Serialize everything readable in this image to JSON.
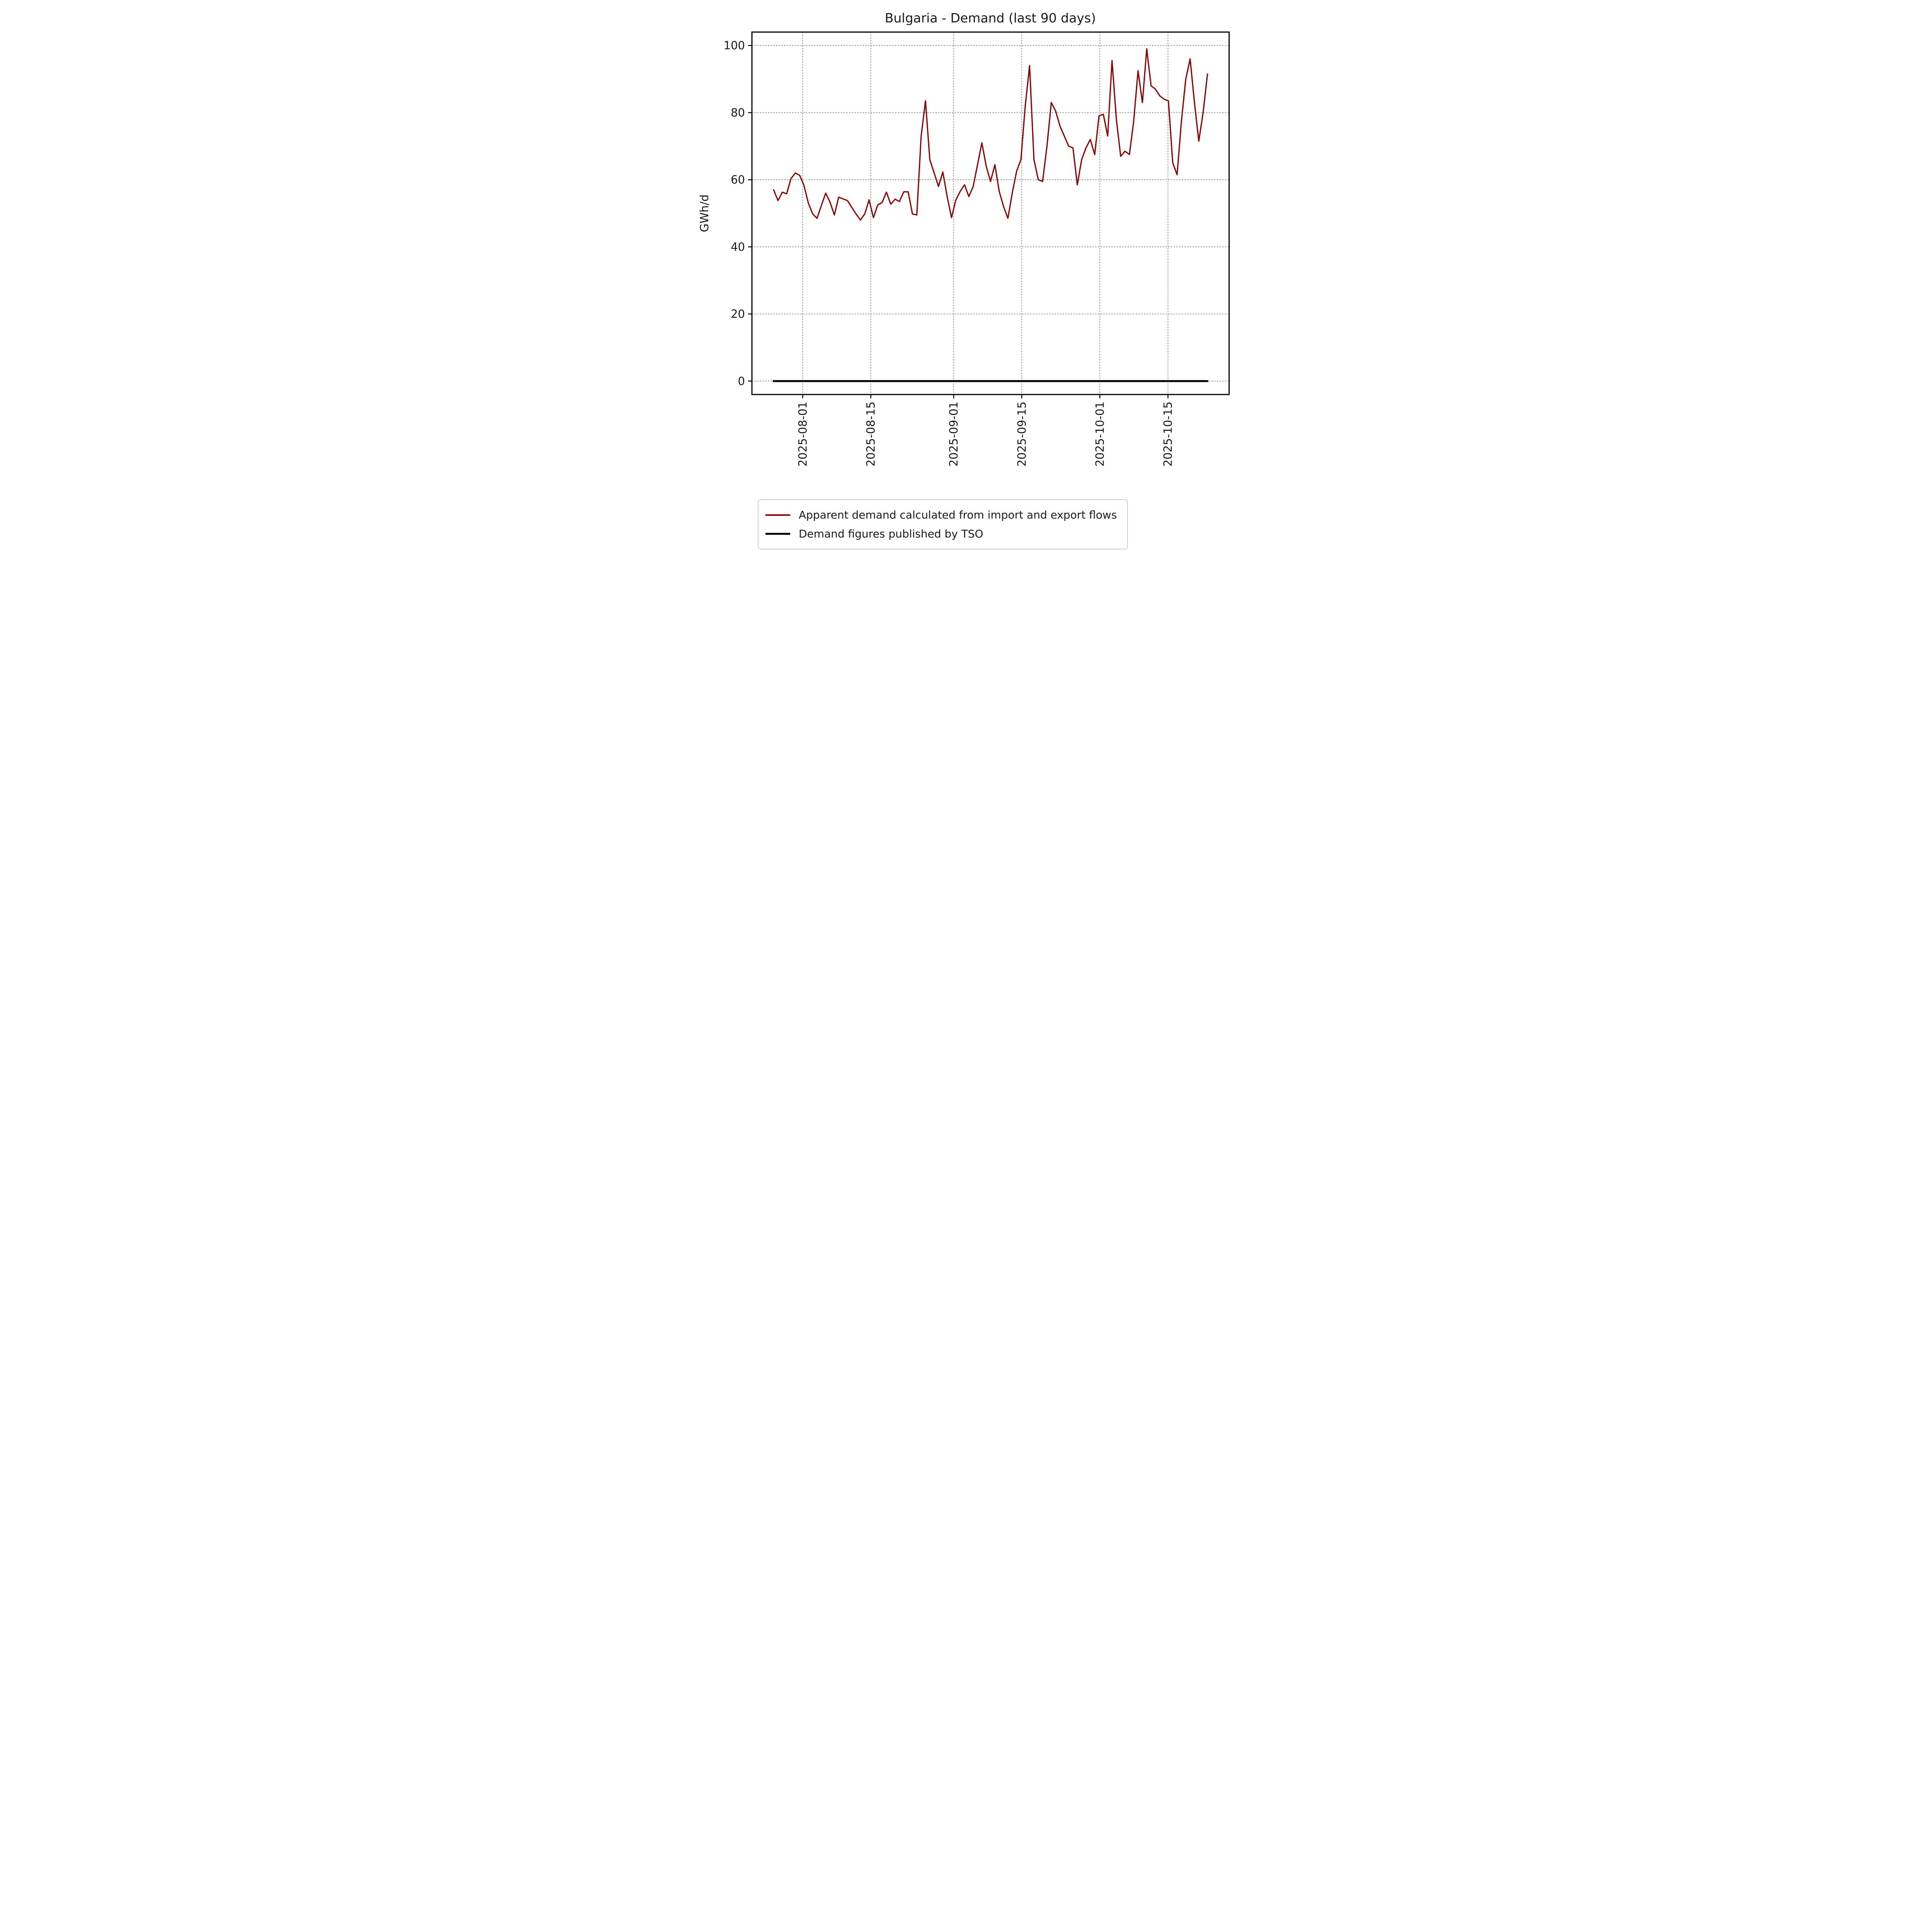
{
  "figure": {
    "title": "Bulgaria - Demand (last 90 days)",
    "ylabel": "GWh/d"
  },
  "legend": {
    "items": [
      {
        "label": "Apparent demand calculated from import and export flows",
        "color": "#8b0000"
      },
      {
        "label": "Demand figures published by TSO",
        "color": "#000000"
      }
    ]
  },
  "chart_data": {
    "type": "line",
    "title": "Bulgaria - Demand (last 90 days)",
    "xlabel": "",
    "ylabel": "GWh/d",
    "grid": true,
    "grid_style": "dotted",
    "legend_position": "below-axes-left",
    "ylim": [
      -4,
      104
    ],
    "yticks": [
      0,
      20,
      40,
      60,
      80,
      100
    ],
    "xlim": [
      -5,
      105
    ],
    "xticks": [
      {
        "label": "2025-08-01",
        "pos": 6.7
      },
      {
        "label": "2025-08-15",
        "pos": 22.4
      },
      {
        "label": "2025-09-01",
        "pos": 41.5
      },
      {
        "label": "2025-09-15",
        "pos": 57.2
      },
      {
        "label": "2025-10-01",
        "pos": 75.2
      },
      {
        "label": "2025-10-15",
        "pos": 90.9
      }
    ],
    "series": [
      {
        "key": "apparent-demand",
        "name": "Apparent demand calculated from import and export flows",
        "color": "#8b0000",
        "values": [
          57.0,
          53.8,
          56.3,
          55.8,
          60.3,
          62.0,
          61.3,
          58.3,
          53.0,
          49.8,
          48.5,
          52.3,
          56.0,
          53.3,
          49.5,
          54.8,
          54.3,
          53.8,
          51.8,
          49.8,
          48.0,
          49.8,
          54.0,
          48.7,
          52.5,
          53.2,
          56.3,
          52.7,
          54.2,
          53.5,
          56.4,
          56.4,
          49.8,
          49.5,
          73.0,
          83.5,
          66.0,
          62.0,
          58.0,
          62.3,
          55.0,
          48.7,
          54.0,
          56.5,
          58.5,
          55.0,
          58.0,
          64.5,
          71.0,
          64.0,
          59.5,
          64.5,
          56.5,
          52.0,
          48.5,
          56.0,
          62.5,
          66.0,
          82.0,
          94.0,
          66.0,
          60.0,
          59.5,
          70.0,
          83.0,
          80.5,
          76.0,
          73.0,
          70.0,
          69.5,
          58.5,
          66.0,
          69.5,
          72.0,
          67.5,
          79.0,
          79.5,
          73.0,
          95.5,
          78.0,
          67.0,
          68.5,
          67.5,
          77.5,
          92.5,
          83.0,
          99.0,
          88.0,
          87.0,
          85.0,
          84.0,
          83.5,
          65.0,
          61.5,
          77.5,
          90.0,
          96.0,
          83.0,
          71.5,
          80.0,
          91.5
        ]
      },
      {
        "key": "tso-demand",
        "name": "Demand figures published by TSO",
        "color": "#000000",
        "constant_value": 0,
        "x_span": [
          0,
          100
        ]
      }
    ]
  }
}
